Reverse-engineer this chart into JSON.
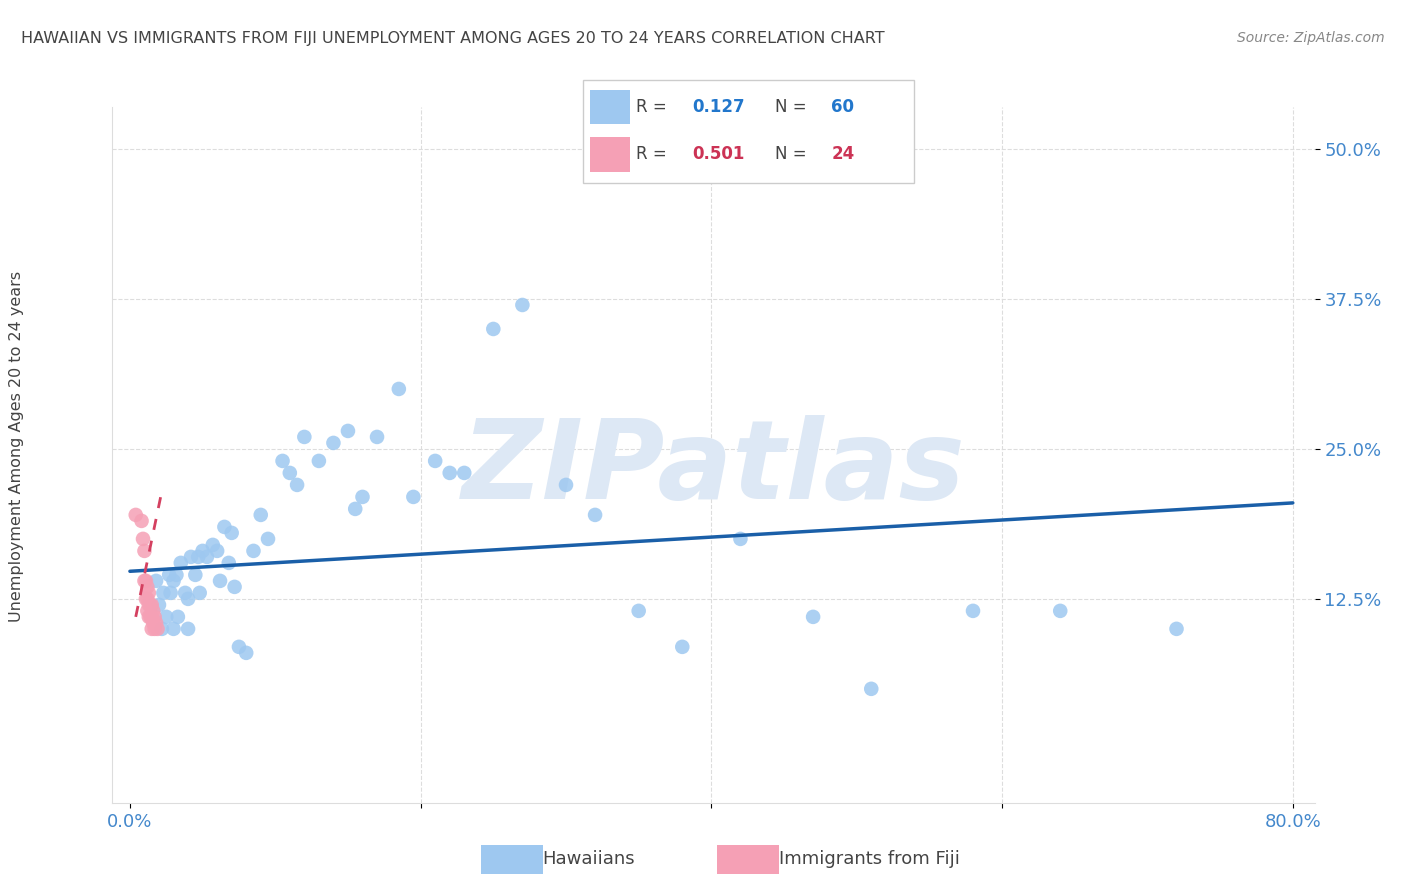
{
  "title": "HAWAIIAN VS IMMIGRANTS FROM FIJI UNEMPLOYMENT AMONG AGES 20 TO 24 YEARS CORRELATION CHART",
  "source": "Source: ZipAtlas.com",
  "ylabel": "Unemployment Among Ages 20 to 24 years",
  "xlim": [
    -0.012,
    0.815
  ],
  "ylim": [
    -0.045,
    0.535
  ],
  "xtick_vals": [
    0.0,
    0.2,
    0.4,
    0.6,
    0.8
  ],
  "xtick_labels": [
    "0.0%",
    "",
    "",
    "",
    "80.0%"
  ],
  "ytick_vals": [
    0.125,
    0.25,
    0.375,
    0.5
  ],
  "ytick_labels": [
    "12.5%",
    "25.0%",
    "37.5%",
    "50.0%"
  ],
  "hawaiians_color": "#9ec8f0",
  "fiji_color": "#f5a0b5",
  "trend_blue_color": "#1a5fa8",
  "trend_pink_color": "#d44060",
  "legend_R_blue": "0.127",
  "legend_N_blue": "60",
  "legend_R_pink": "0.501",
  "legend_N_pink": "24",
  "watermark": "ZIPatlas",
  "watermark_color": "#dde8f5",
  "hawaiians_x": [
    0.018,
    0.02,
    0.022,
    0.023,
    0.025,
    0.027,
    0.028,
    0.03,
    0.03,
    0.032,
    0.033,
    0.035,
    0.038,
    0.04,
    0.04,
    0.042,
    0.045,
    0.047,
    0.048,
    0.05,
    0.053,
    0.057,
    0.06,
    0.062,
    0.065,
    0.068,
    0.07,
    0.072,
    0.075,
    0.08,
    0.085,
    0.09,
    0.095,
    0.105,
    0.11,
    0.115,
    0.12,
    0.13,
    0.14,
    0.15,
    0.155,
    0.16,
    0.17,
    0.185,
    0.195,
    0.21,
    0.22,
    0.23,
    0.25,
    0.27,
    0.3,
    0.32,
    0.35,
    0.38,
    0.42,
    0.47,
    0.51,
    0.58,
    0.64,
    0.72
  ],
  "hawaiians_y": [
    0.14,
    0.12,
    0.1,
    0.13,
    0.11,
    0.145,
    0.13,
    0.14,
    0.1,
    0.145,
    0.11,
    0.155,
    0.13,
    0.125,
    0.1,
    0.16,
    0.145,
    0.16,
    0.13,
    0.165,
    0.16,
    0.17,
    0.165,
    0.14,
    0.185,
    0.155,
    0.18,
    0.135,
    0.085,
    0.08,
    0.165,
    0.195,
    0.175,
    0.24,
    0.23,
    0.22,
    0.26,
    0.24,
    0.255,
    0.265,
    0.2,
    0.21,
    0.26,
    0.3,
    0.21,
    0.24,
    0.23,
    0.23,
    0.35,
    0.37,
    0.22,
    0.195,
    0.115,
    0.085,
    0.175,
    0.11,
    0.05,
    0.115,
    0.115,
    0.1
  ],
  "fiji_x": [
    0.004,
    0.008,
    0.009,
    0.01,
    0.01,
    0.011,
    0.011,
    0.012,
    0.012,
    0.012,
    0.013,
    0.013,
    0.013,
    0.014,
    0.014,
    0.015,
    0.015,
    0.015,
    0.016,
    0.016,
    0.017,
    0.017,
    0.018,
    0.019
  ],
  "fiji_y": [
    0.195,
    0.19,
    0.175,
    0.165,
    0.14,
    0.14,
    0.125,
    0.135,
    0.125,
    0.115,
    0.13,
    0.12,
    0.11,
    0.12,
    0.11,
    0.12,
    0.11,
    0.1,
    0.115,
    0.105,
    0.11,
    0.1,
    0.105,
    0.1
  ],
  "blue_trend_x": [
    0.0,
    0.8
  ],
  "blue_trend_y": [
    0.148,
    0.205
  ],
  "pink_trend_x": [
    0.004,
    0.022
  ],
  "pink_trend_y": [
    0.11,
    0.215
  ],
  "grid_color": "#dddddd",
  "title_color": "#444444",
  "source_color": "#888888",
  "tick_color": "#4488cc",
  "ylabel_color": "#444444"
}
